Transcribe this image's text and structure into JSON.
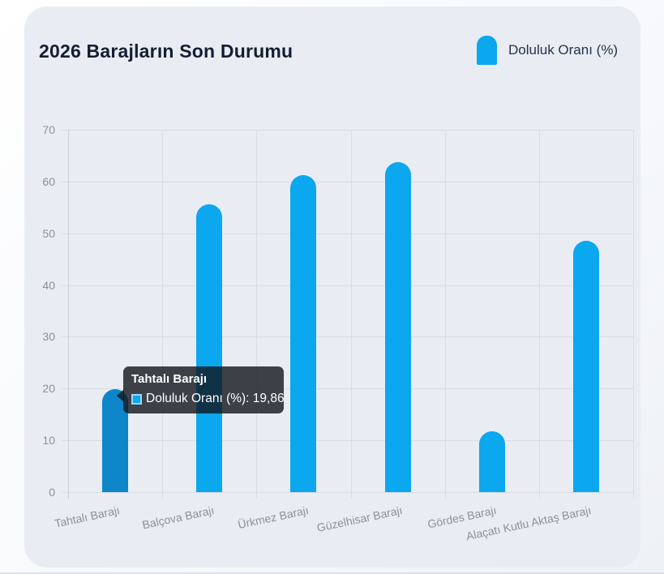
{
  "header": {
    "title": "2026 Barajların Son Durumu"
  },
  "legend": {
    "label": "Doluluk Oranı (%)",
    "swatch_color": "#0ba7ef"
  },
  "chart_data": {
    "type": "bar",
    "title": "2026 Barajların Son Durumu",
    "categories": [
      "Tahtalı Barajı",
      "Balçova Barajı",
      "Ürkmez Barajı",
      "Güzelhisar Barajı",
      "Gördes Barajı",
      "Alaçatı Kutlu Aktaş Barajı"
    ],
    "series": [
      {
        "name": "Doluluk Oranı (%)",
        "values": [
          19.86,
          55.6,
          61.3,
          63.7,
          11.7,
          48.5
        ]
      }
    ],
    "xlabel": "",
    "ylabel": "",
    "ylim": [
      0,
      70
    ],
    "yticks": [
      0,
      10,
      20,
      30,
      40,
      50,
      60,
      70
    ],
    "grid": true,
    "legend_position": "top-right",
    "bar_color": "#0ba7ef",
    "hovered_bar_color": "#0c86c8",
    "hovered_index": 0
  },
  "tooltip": {
    "title": "Tahtalı Barajı",
    "label": "Doluluk Oranı (%): 19,86",
    "swatch_color": "#0ba7ef"
  },
  "colors": {
    "card_background": "#e9edf3",
    "grid": "#d9dde4",
    "tick_text": "#8a909b",
    "title_text": "#141e33"
  }
}
